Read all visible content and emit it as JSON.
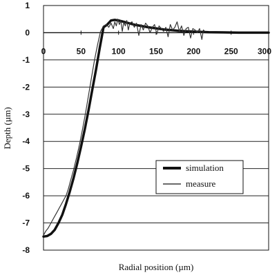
{
  "chart_data": {
    "type": "line",
    "xlabel": "Radial position (µm)",
    "ylabel": "Depth (µm)",
    "xlim": [
      0,
      300
    ],
    "ylim": [
      -8,
      1
    ],
    "x_ticks": [
      0,
      50,
      100,
      150,
      200,
      250,
      300
    ],
    "x_tick_labels": [
      "0",
      "50",
      "100",
      "150",
      "200",
      "250",
      "300"
    ],
    "y_ticks": [
      1,
      0,
      -1,
      -2,
      -3,
      -4,
      -5,
      -6,
      -7,
      -8
    ],
    "y_tick_labels": [
      "1",
      "0",
      "-1",
      "-2",
      "-3",
      "-4",
      "-5",
      "-6",
      "-7",
      "-8"
    ],
    "grid": "horizontal",
    "legend_position": "lower-right",
    "series": [
      {
        "name": "simulation",
        "style": "thick",
        "color": "#111111",
        "x": [
          0,
          5,
          10,
          15,
          20,
          25,
          30,
          35,
          40,
          45,
          50,
          55,
          60,
          65,
          70,
          75,
          80,
          85,
          90,
          95,
          100,
          110,
          120,
          140,
          160,
          180,
          200,
          220,
          240,
          260,
          280,
          300
        ],
        "y": [
          -7.5,
          -7.48,
          -7.4,
          -7.25,
          -7.0,
          -6.7,
          -6.3,
          -5.85,
          -5.35,
          -4.8,
          -4.2,
          -3.55,
          -2.85,
          -2.1,
          -1.35,
          -0.55,
          0.2,
          0.3,
          0.45,
          0.47,
          0.45,
          0.38,
          0.3,
          0.2,
          0.12,
          0.07,
          0.04,
          0.02,
          0.01,
          0.0,
          0.0,
          0.0
        ]
      },
      {
        "name": "measure",
        "style": "thin",
        "color": "#333333",
        "x": [
          0,
          3,
          6,
          9,
          12,
          15,
          18,
          21,
          24,
          27,
          30,
          33,
          36,
          40,
          44,
          48,
          52,
          56,
          60,
          64,
          68,
          72,
          76,
          80,
          84,
          87,
          90,
          93,
          95,
          97,
          99,
          101,
          103,
          105,
          107,
          109,
          111,
          113,
          115,
          118,
          121,
          124,
          127,
          130,
          133,
          136,
          139,
          142,
          145,
          148,
          151,
          154,
          157,
          160,
          163,
          166,
          169,
          172,
          175,
          178,
          181,
          184,
          187,
          190,
          193,
          196,
          199,
          202,
          205,
          208,
          211,
          213,
          215
        ],
        "y": [
          -7.45,
          -7.3,
          -7.2,
          -7.05,
          -6.9,
          -6.75,
          -6.6,
          -6.45,
          -6.3,
          -6.15,
          -6.0,
          -5.75,
          -5.45,
          -5.05,
          -4.6,
          -4.1,
          -3.55,
          -2.95,
          -2.3,
          -1.65,
          -1.0,
          -0.45,
          0.05,
          0.25,
          0.3,
          0.2,
          0.35,
          0.15,
          0.4,
          0.25,
          0.5,
          0.3,
          0.45,
          0.05,
          0.4,
          0.25,
          0.45,
          0.1,
          0.35,
          0.4,
          0.2,
          0.35,
          -0.1,
          0.3,
          0.1,
          0.35,
          0.25,
          0.0,
          0.2,
          0.3,
          -0.05,
          0.25,
          0.15,
          0.05,
          0.2,
          -0.15,
          0.3,
          0.1,
          0.2,
          0.4,
          0.05,
          0.25,
          -0.1,
          0.15,
          0.2,
          -0.2,
          0.15,
          0.1,
          0.0,
          0.15,
          -0.25,
          0.1,
          0.05
        ]
      }
    ]
  }
}
